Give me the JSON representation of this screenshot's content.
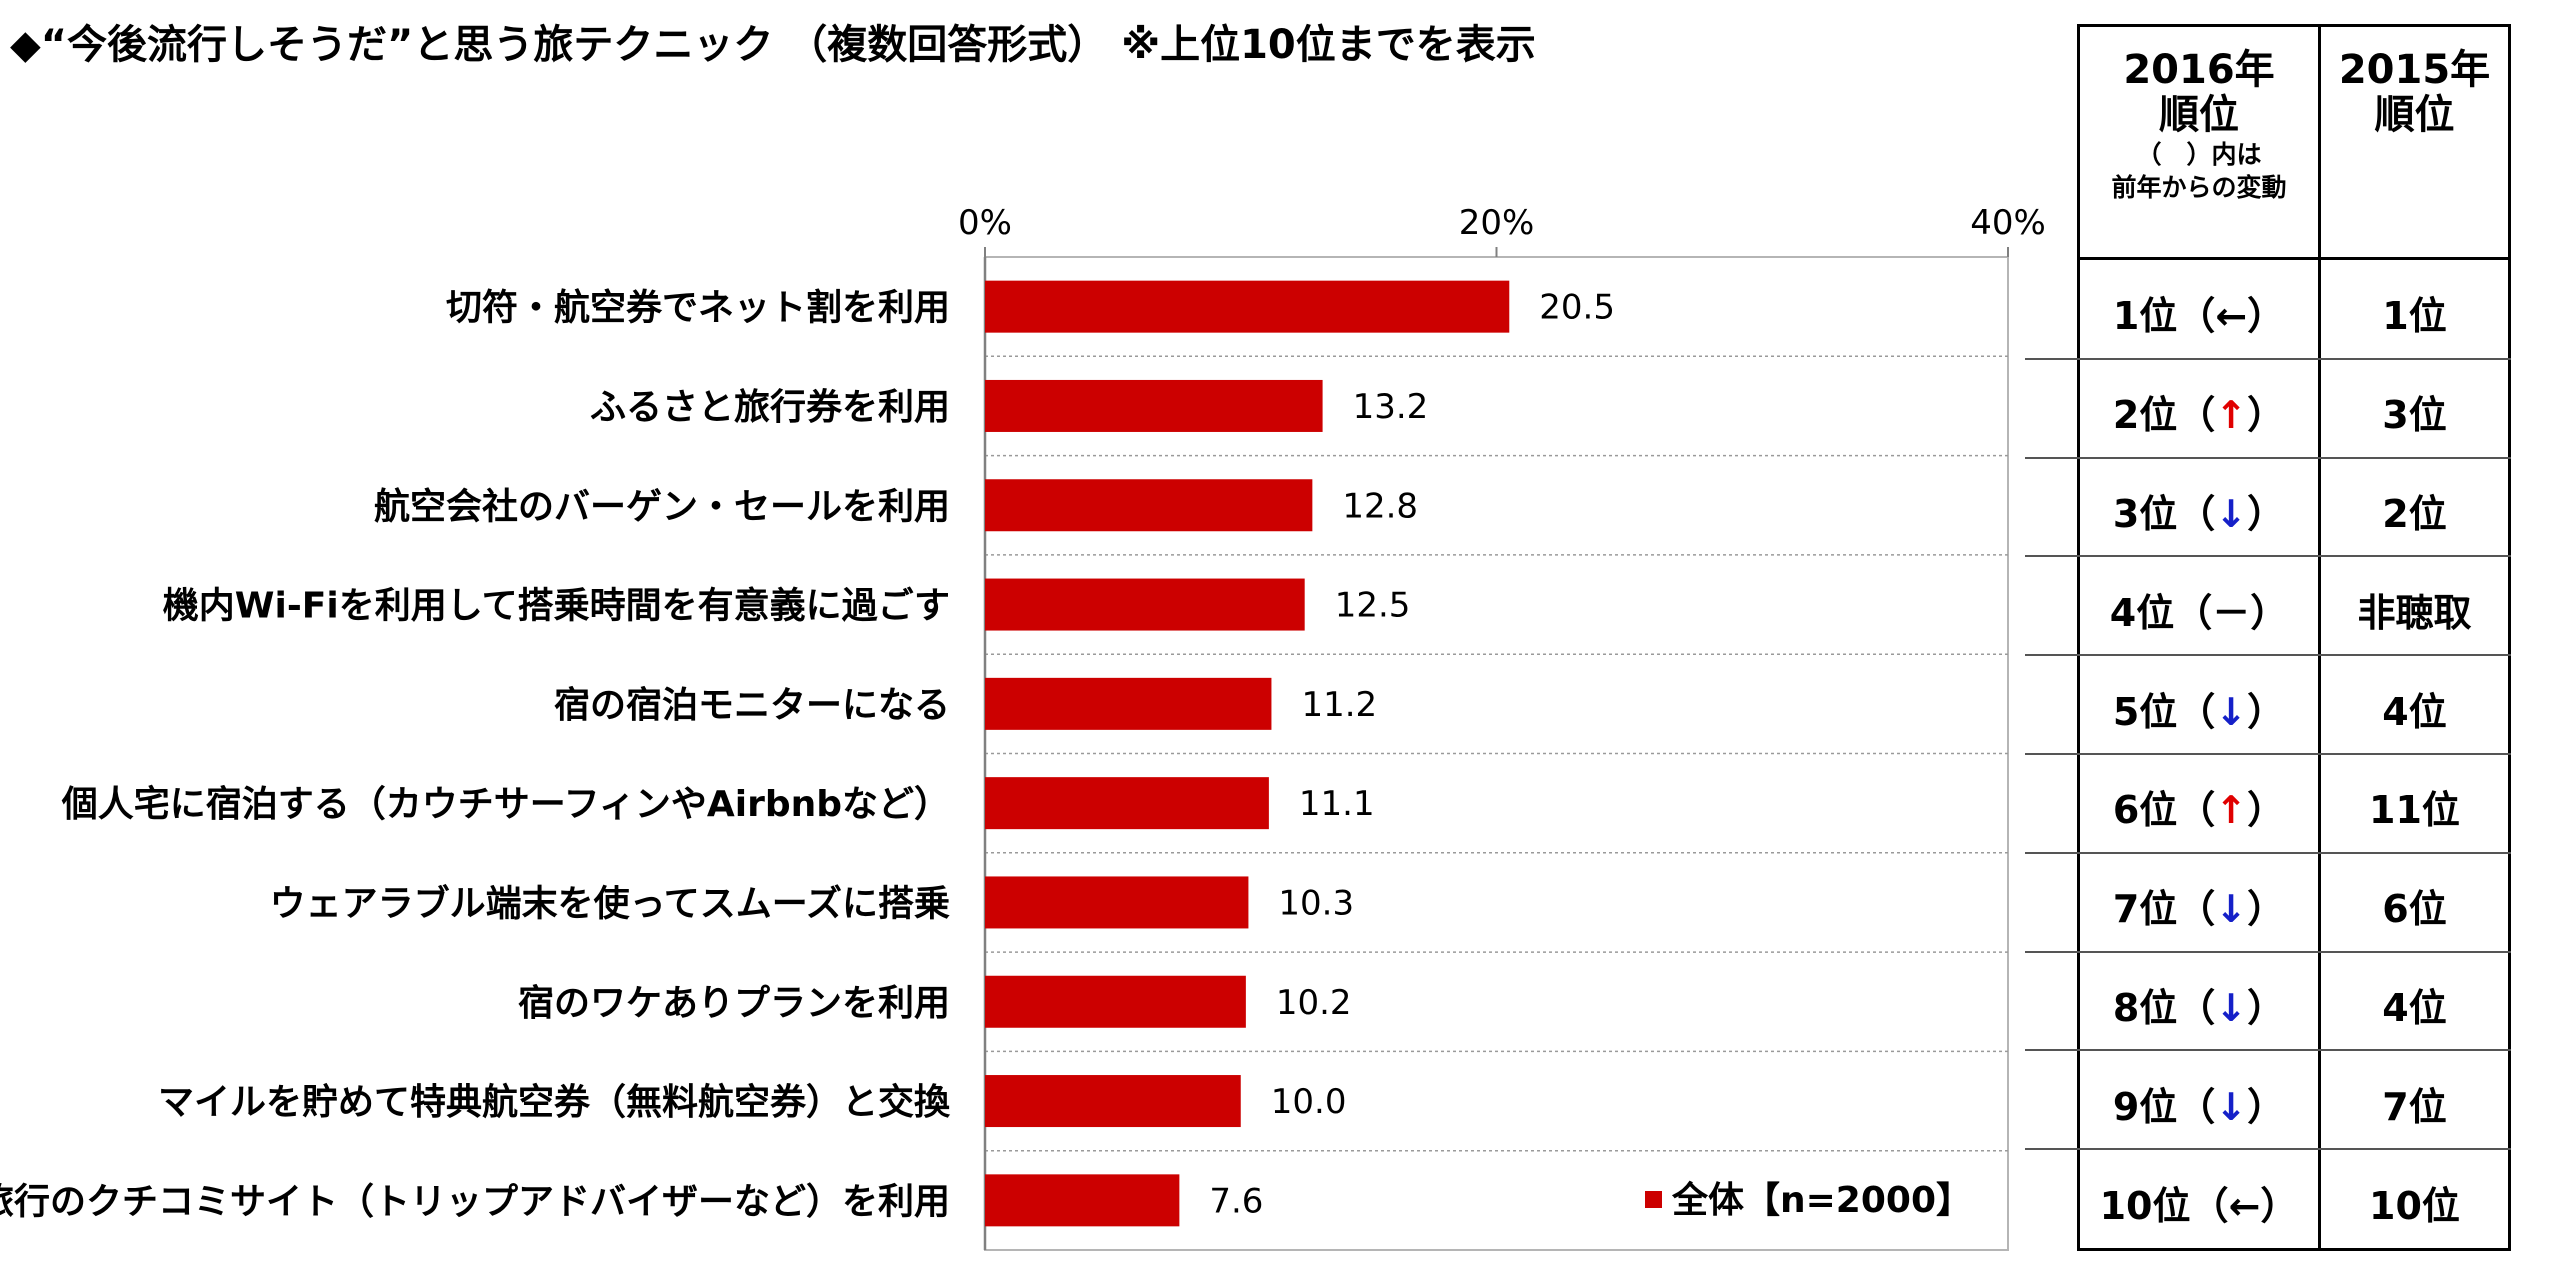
{
  "title": "◆“今後流行しそうだ”と思う旅テクニック （複数回答形式） ※上位10位までを表示",
  "chart_data": {
    "type": "bar",
    "orientation": "horizontal",
    "categories": [
      "切符・航空券でネット割を利用",
      "ふるさと旅行券を利用",
      "航空会社のバーゲン・セールを利用",
      "機内Wi-Fiを利用して搭乗時間を有意義に過ごす",
      "宿の宿泊モニターになる",
      "個人宅に宿泊する（カウチサーフィンやAirbnbなど）",
      "ウェアラブル端末を使ってスムーズに搭乗",
      "宿のワケありプランを利用",
      "マイルを貯めて特典航空券（無料航空券）と交換",
      "旅行のクチコミサイト（トリップアドバイザーなど）を利用"
    ],
    "series": [
      {
        "name": "全体【n=2000】",
        "values": [
          20.5,
          13.2,
          12.8,
          12.5,
          11.2,
          11.1,
          10.3,
          10.2,
          10.0,
          7.6
        ],
        "labels": [
          "20.5",
          "13.2",
          "12.8",
          "12.5",
          "11.2",
          "11.1",
          "10.3",
          "10.2",
          "10.0",
          "7.6"
        ]
      }
    ],
    "xlim": [
      0,
      40
    ],
    "xticks": [
      "0%",
      "20%",
      "40%"
    ],
    "bar_color": "#cc0000",
    "grid": "horizontal-dotted",
    "legend_position": "bottom-right"
  },
  "rank_table": {
    "header_2016": {
      "line1": "2016年",
      "line2": "順位",
      "note1": "（　）内は",
      "note2": "前年からの変動"
    },
    "header_2015": {
      "line1": "2015年",
      "line2": "順位"
    },
    "rows": [
      {
        "r2016": "1位",
        "arrow": "←",
        "dir": "none",
        "r2015": "1位"
      },
      {
        "r2016": "2位",
        "arrow": "↑",
        "dir": "up",
        "r2015": "3位"
      },
      {
        "r2016": "3位",
        "arrow": "↓",
        "dir": "down",
        "r2015": "2位"
      },
      {
        "r2016": "4位",
        "arrow": "－",
        "dir": "none",
        "r2015": "非聴取"
      },
      {
        "r2016": "5位",
        "arrow": "↓",
        "dir": "down",
        "r2015": "4位"
      },
      {
        "r2016": "6位",
        "arrow": "↑",
        "dir": "up",
        "r2015": "11位"
      },
      {
        "r2016": "7位",
        "arrow": "↓",
        "dir": "down",
        "r2015": "6位"
      },
      {
        "r2016": "8位",
        "arrow": "↓",
        "dir": "down",
        "r2015": "4位"
      },
      {
        "r2016": "9位",
        "arrow": "↓",
        "dir": "down",
        "r2015": "7位"
      },
      {
        "r2016": "10位",
        "arrow": "←",
        "dir": "none",
        "r2015": "10位"
      }
    ],
    "colors": {
      "up": "#e00000",
      "down": "#1520c8"
    }
  }
}
